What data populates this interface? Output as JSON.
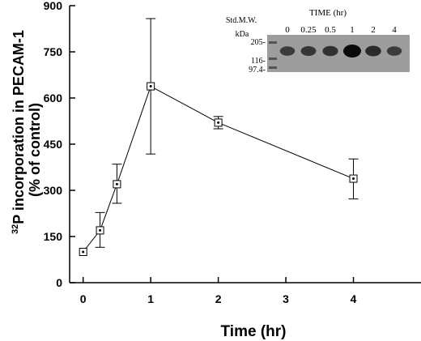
{
  "chart_data": {
    "type": "line",
    "title": "",
    "xlabel": "Time (hr)",
    "ylabel": {
      "superscript": "32",
      "line1": "P incorporation in PECAM-1",
      "line2": "(% of control)"
    },
    "xlim": [
      -0.2,
      5
    ],
    "ylim": [
      0,
      900
    ],
    "x_ticks": [
      0,
      1,
      2,
      3,
      4
    ],
    "y_ticks": [
      0,
      150,
      300,
      450,
      600,
      750,
      900
    ],
    "grid": false,
    "series": [
      {
        "marker": "square-with-dot",
        "color": "#000000",
        "points": [
          {
            "x": 0,
            "y": 100,
            "err_low": 100,
            "err_high": 100
          },
          {
            "x": 0.25,
            "y": 170,
            "err_low": 115,
            "err_high": 228
          },
          {
            "x": 0.5,
            "y": 320,
            "err_low": 258,
            "err_high": 385
          },
          {
            "x": 1,
            "y": 638,
            "err_low": 418,
            "err_high": 858
          },
          {
            "x": 2,
            "y": 520,
            "err_low": 500,
            "err_high": 540
          },
          {
            "x": 4,
            "y": 338,
            "err_low": 272,
            "err_high": 402
          }
        ]
      }
    ],
    "inset": {
      "title": "TIME (hr)",
      "marker_label": "Std.M.W.",
      "unit_label": "kDa",
      "lane_labels": [
        "0",
        "0.25",
        "0.5",
        "1",
        "2",
        "4"
      ],
      "mw_labels": [
        "205-",
        "116-",
        "97.4-"
      ],
      "band_intensity": [
        0.55,
        0.6,
        0.65,
        1.0,
        0.7,
        0.55
      ]
    }
  }
}
